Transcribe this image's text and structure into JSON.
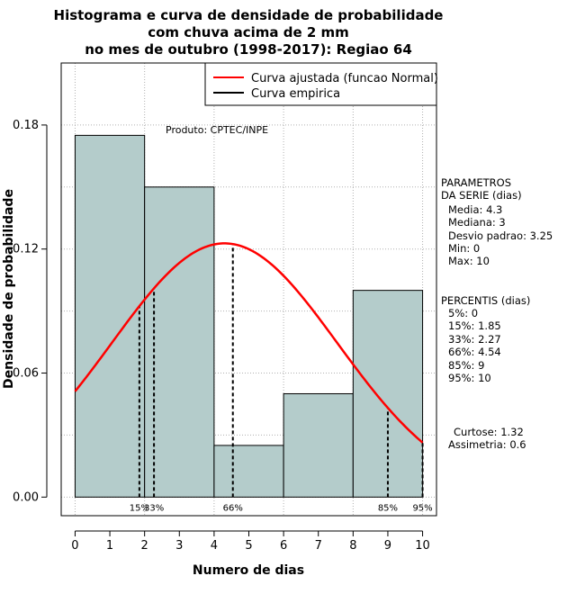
{
  "chart_data": {
    "type": "bar",
    "title_lines": [
      "Histograma e curva de densidade de probabilidade",
      "com chuva acima de 2 mm",
      "no mes de outubro (1998-2017): Regiao 64"
    ],
    "xlabel": "Numero de dias",
    "ylabel": "Densidade de probabilidade",
    "xlim": [
      -0.4,
      10.4
    ],
    "ylim": [
      -0.009,
      0.21
    ],
    "x_ticks": [
      "0",
      "1",
      "2",
      "3",
      "4",
      "5",
      "6",
      "7",
      "8",
      "9",
      "10"
    ],
    "y_ticks": [
      "0.00",
      "0.06",
      "0.12",
      "0.18"
    ],
    "grid": true,
    "bins": [
      {
        "from": 0,
        "to": 2,
        "density": 0.175
      },
      {
        "from": 2,
        "to": 4,
        "density": 0.15
      },
      {
        "from": 4,
        "to": 6,
        "density": 0.025
      },
      {
        "from": 6,
        "to": 8,
        "density": 0.05
      },
      {
        "from": 8,
        "to": 10,
        "density": 0.1
      }
    ],
    "normal_curve": {
      "mean": 4.3,
      "sd": 3.25,
      "from": 0,
      "to": 10
    },
    "percentile_lines": [
      {
        "x": 1.85,
        "label": "15%"
      },
      {
        "x": 2.27,
        "label": "33%"
      },
      {
        "x": 4.54,
        "label": "66%"
      },
      {
        "x": 9,
        "label": "85%"
      },
      {
        "x": 10,
        "label": "95%"
      }
    ],
    "legend": [
      {
        "label": "Curva ajustada (funcao Normal)",
        "color": "#ff0000"
      },
      {
        "label": "Curva empirica",
        "color": "#000000"
      }
    ],
    "annotation": "Produto: CPTEC/INPE",
    "params_header": [
      "PARAMETROS",
      "DA SERIE (dias)"
    ],
    "params": [
      "Media: 4.3",
      "Mediana: 3",
      "Desvio padrao: 3.25",
      "Min: 0",
      "Max: 10"
    ],
    "percentis_header": "PERCENTIS (dias)",
    "percentis": [
      "5%: 0",
      "15%: 1.85",
      "33%: 2.27",
      "66%: 4.54",
      "85%: 9",
      "95%: 10"
    ],
    "extra_stats": [
      "Curtose: 1.32",
      "Assimetria: 0.6"
    ],
    "colors": {
      "bar_fill": "#b4cccb",
      "curve": "#ff0000",
      "grid": "#b0b0b0"
    }
  }
}
